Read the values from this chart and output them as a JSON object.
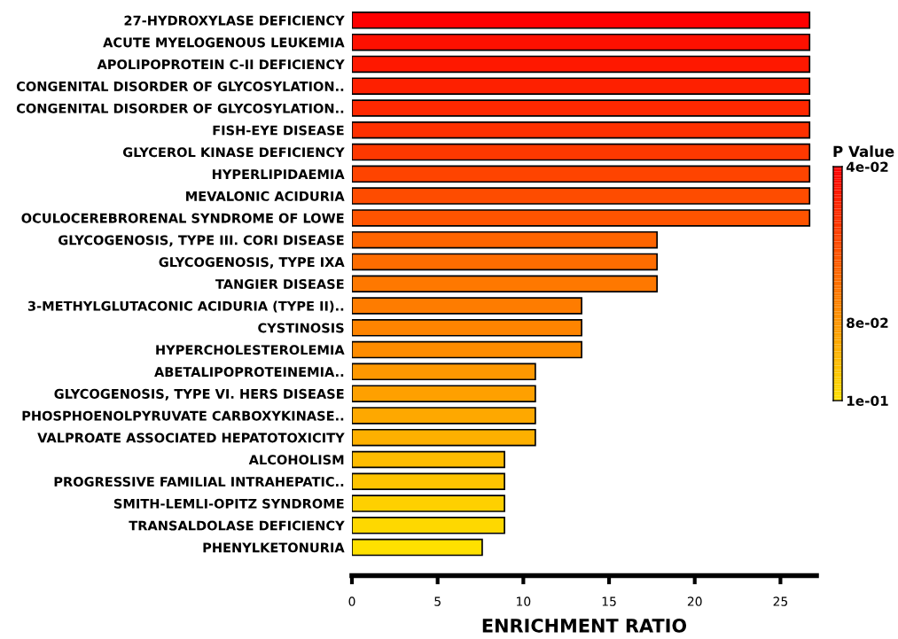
{
  "chart_data": {
    "type": "bar",
    "orientation": "horizontal",
    "xlabel": "ENRICHMENT RATIO",
    "clabel": "P Value",
    "categories": [
      "27-HYDROXYLASE DEFICIENCY",
      "ACUTE MYELOGENOUS LEUKEMIA",
      "APOLIPOPROTEIN C-II DEFICIENCY",
      "CONGENITAL DISORDER OF GLYCOSYLATION..",
      "CONGENITAL DISORDER OF GLYCOSYLATION..",
      "FISH-EYE DISEASE",
      "GLYCEROL KINASE DEFICIENCY",
      "HYPERLIPIDAEMIA",
      "MEVALONIC ACIDURIA",
      "OCULOCEREBRORENAL SYNDROME OF LOWE",
      "GLYCOGENOSIS, TYPE III. CORI DISEASE",
      "GLYCOGENOSIS, TYPE IXA",
      "TANGIER DISEASE",
      "3-METHYLGLUTACONIC ACIDURIA (TYPE II)..",
      "CYSTINOSIS",
      "HYPERCHOLESTEROLEMIA",
      "ABETALIPOPROTEINEMIA..",
      "GLYCOGENOSIS, TYPE VI. HERS DISEASE",
      "PHOSPHOENOLPYRUVATE CARBOXYKINASE..",
      "VALPROATE ASSOCIATED HEPATOTOXICITY",
      "ALCOHOLISM",
      "PROGRESSIVE FAMILIAL INTRAHEPATIC..",
      "SMITH-LEMLI-OPITZ SYNDROME",
      "TRANSALDOLASE DEFICIENCY",
      "PHENYLKETONURIA"
    ],
    "values": [
      26.7,
      26.7,
      26.7,
      26.7,
      26.7,
      26.7,
      26.7,
      26.7,
      26.7,
      26.7,
      17.8,
      17.8,
      17.8,
      13.4,
      13.4,
      13.4,
      10.7,
      10.7,
      10.7,
      10.7,
      8.9,
      8.9,
      8.9,
      8.9,
      7.6
    ],
    "colors": [
      "#fe0000",
      "#fe1000",
      "#fe1800",
      "#fe2000",
      "#fe2800",
      "#fe3000",
      "#fe3800",
      "#fe4400",
      "#fe4c00",
      "#fe5400",
      "#fe6400",
      "#fe6c00",
      "#fe7800",
      "#fe7c00",
      "#fe8400",
      "#fe8c00",
      "#fe9800",
      "#fea000",
      "#fea800",
      "#feb000",
      "#febc00",
      "#fec400",
      "#fed000",
      "#fed800",
      "#fee000"
    ],
    "xlim": [
      0,
      27.1
    ],
    "xticks": [
      0,
      5,
      10,
      15,
      20,
      25
    ],
    "clim": [
      0.1,
      0.04
    ],
    "cticks": [
      {
        "value": 0.04,
        "label": "4e-02"
      },
      {
        "value": 0.08,
        "label": "8e-02"
      },
      {
        "value": 0.1,
        "label": "1e-01"
      }
    ],
    "grid": false,
    "legend": false
  }
}
